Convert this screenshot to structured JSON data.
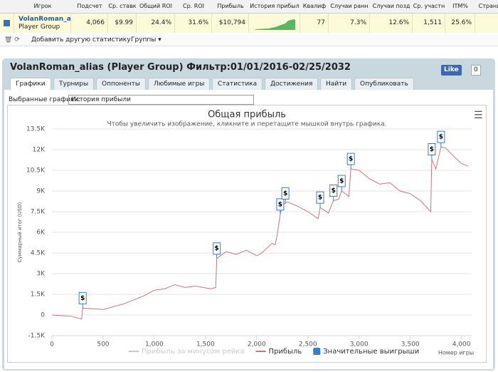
{
  "table": {
    "headers": [
      "Игрок",
      "Подсчет",
      "Ср. ставк",
      "Общий ROI",
      "Ср. ROI",
      "Прибыль",
      "История прибыл",
      "Квалиф",
      "Случаи ранн",
      "Случаи позд",
      "Ср. участн",
      "ITM%",
      "Страни"
    ],
    "player": "VolanRoman_ali",
    "group": "Player Group",
    "row": [
      "4,066",
      "$9.99",
      "24.4%",
      "31.6%",
      "$10,794",
      "",
      "77",
      "7.3%",
      "12.6%",
      "1,511",
      "25.6%",
      ""
    ]
  },
  "toolbar": {
    "add": "Добавить другую статистику",
    "groups": "Группы"
  },
  "panel": {
    "title": "VolanRoman_alias (Player Group) Фильтр:01/01/2016-02/25/2032",
    "like": "Like",
    "like_count": "0",
    "tabs": [
      "Графики",
      "Турниры",
      "Оппоненты",
      "Любимые игры",
      "Статистика",
      "Достижения",
      "Найти",
      "Опубликовать"
    ],
    "select_label": "Выбранные графики:",
    "select_value": "История прибыли"
  },
  "chart_data": {
    "type": "line",
    "title": "Общая прибыль",
    "subtitle": "Чтобы увеличить изображение, кликните и перетащите мышкой внутрь графика.",
    "x_label": "Номер игры",
    "y_label": "Суммарный итог (USD)",
    "xlim": [
      0,
      4100
    ],
    "xticks": [
      0,
      500,
      {
        "value": 1000,
        "label": "1,000"
      },
      {
        "value": 1500,
        "label": "1,500"
      },
      {
        "value": 2000,
        "label": "2,000"
      },
      {
        "value": 2500,
        "label": "2,500"
      },
      {
        "value": 3000,
        "label": "3,000"
      },
      {
        "value": 3500,
        "label": "3,500"
      },
      {
        "value": 4000,
        "label": "4,000"
      }
    ],
    "ylim": [
      -1500,
      13500
    ],
    "yticks": [
      {
        "value": -1500,
        "label": "-1.5K"
      },
      0,
      {
        "value": 1500,
        "label": "1.5K"
      },
      {
        "value": 3000,
        "label": "3K"
      },
      {
        "value": 4500,
        "label": "4.5K"
      },
      {
        "value": 6000,
        "label": "6K"
      },
      {
        "value": 7500,
        "label": "7.5K"
      },
      {
        "value": 9000,
        "label": "9K"
      },
      {
        "value": 10500,
        "label": "10.5K"
      },
      {
        "value": 12000,
        "label": "12K"
      },
      {
        "value": 13500,
        "label": "13.5K"
      }
    ],
    "grid": true,
    "series": [
      {
        "name": "Прибыль за минусом рейка",
        "color": "#cccccc",
        "hidden": true
      },
      {
        "name": "Прибыль",
        "color": "#c9767b",
        "x": [
          0,
          100,
          200,
          290,
          300,
          500,
          700,
          900,
          1000,
          1100,
          1200,
          1300,
          1400,
          1550,
          1600,
          1610,
          1700,
          1800,
          1900,
          2000,
          2050,
          2150,
          2180,
          2200,
          2230,
          2250,
          2300,
          2400,
          2500,
          2600,
          2620,
          2700,
          2750,
          2800,
          2830,
          2900,
          2920,
          3000,
          3100,
          3200,
          3300,
          3400,
          3500,
          3600,
          3700,
          3710,
          3750,
          3800,
          3850,
          3900,
          4000,
          4066
        ],
        "values": [
          0,
          -50,
          -100,
          -300,
          500,
          400,
          800,
          1400,
          1800,
          1900,
          2200,
          2000,
          2100,
          1900,
          2000,
          4100,
          4600,
          4400,
          4700,
          4300,
          4500,
          5200,
          5100,
          5800,
          7300,
          8000,
          8200,
          7900,
          7500,
          7000,
          7800,
          7400,
          8300,
          8400,
          9000,
          8600,
          10600,
          10500,
          9900,
          9500,
          9600,
          9000,
          8800,
          8300,
          7500,
          11300,
          10600,
          12200,
          12100,
          11700,
          11000,
          10800
        ]
      }
    ],
    "flags": {
      "name": "Значительные выигрыши",
      "color": "#3b7bc9",
      "label": "$",
      "x": [
        300,
        1610,
        2230,
        2280,
        2620,
        2750,
        2830,
        2920,
        3710,
        3800
      ],
      "values": [
        500,
        4100,
        7300,
        8100,
        7800,
        8300,
        9000,
        10600,
        11300,
        12200
      ]
    }
  }
}
